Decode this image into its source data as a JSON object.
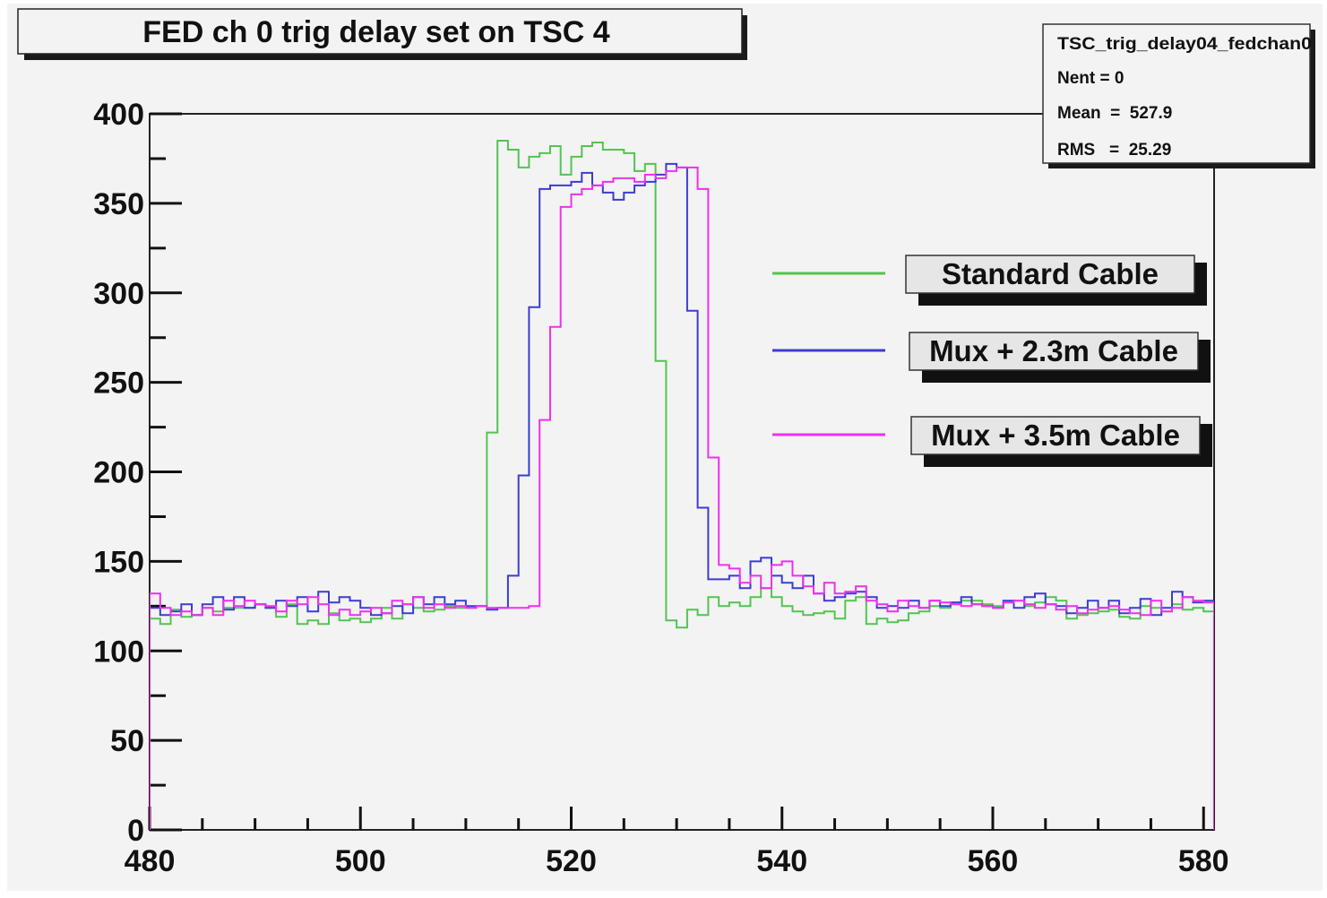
{
  "chart_data": {
    "type": "line",
    "title": "FED ch 0 trig delay set on TSC  4",
    "xlim": [
      480,
      581
    ],
    "ylim": [
      0,
      400
    ],
    "x_ticks": [
      480,
      500,
      520,
      540,
      560,
      580
    ],
    "y_ticks": [
      0,
      50,
      100,
      150,
      200,
      250,
      300,
      350,
      400
    ],
    "grid": false,
    "legend_position": "right",
    "bin_start": 480,
    "bin_width": 1,
    "stats": {
      "name": "TSC_trig_delay04_fedchan0",
      "entries": "Nent = 0",
      "mean": "Mean  =  527.9",
      "rms": "RMS   =  25.29"
    },
    "series": [
      {
        "name": "Standard Cable",
        "color": "#52c452",
        "values": [
          118,
          115,
          123,
          119,
          120,
          124,
          122,
          124,
          124,
          124,
          126,
          124,
          119,
          126,
          115,
          117,
          115,
          121,
          117,
          118,
          116,
          118,
          124,
          118,
          126,
          124,
          122,
          123,
          125,
          124,
          124,
          125,
          222,
          385,
          380,
          370,
          376,
          378,
          382,
          366,
          376,
          382,
          384,
          380,
          380,
          378,
          368,
          372,
          262,
          117,
          113,
          123,
          120,
          130,
          125,
          127,
          125,
          130,
          135,
          130,
          125,
          122,
          120,
          121,
          122,
          118,
          128,
          130,
          115,
          118,
          116,
          117,
          121,
          122,
          125,
          124,
          127,
          128,
          128,
          126,
          125,
          127,
          128,
          125,
          127,
          130,
          128,
          118,
          120,
          121,
          122,
          123,
          119,
          118,
          125,
          124,
          122,
          126,
          123,
          124,
          122
        ]
      },
      {
        "name": "Mux + 2.3m Cable",
        "color": "#3c3cd2",
        "values": [
          124,
          120,
          122,
          126,
          120,
          126,
          130,
          123,
          130,
          124,
          126,
          124,
          128,
          125,
          130,
          122,
          133,
          127,
          130,
          128,
          124,
          120,
          121,
          125,
          121,
          130,
          126,
          130,
          126,
          128,
          125,
          125,
          123,
          124,
          142,
          198,
          292,
          358,
          360,
          360,
          362,
          367,
          360,
          356,
          352,
          356,
          360,
          362,
          366,
          372,
          370,
          290,
          180,
          140,
          140,
          142,
          135,
          150,
          152,
          142,
          138,
          135,
          142,
          132,
          128,
          130,
          132,
          133,
          130,
          124,
          125,
          124,
          128,
          124,
          128,
          125,
          127,
          130,
          126,
          125,
          124,
          128,
          124,
          130,
          132,
          126,
          125,
          121,
          124,
          128,
          124,
          128,
          121,
          124,
          129,
          120,
          124,
          133,
          130,
          127,
          128
        ]
      },
      {
        "name": "Mux + 3.5m Cable",
        "color": "#ee30ee",
        "values": [
          132,
          124,
          120,
          122,
          120,
          124,
          120,
          128,
          125,
          128,
          126,
          125,
          122,
          128,
          126,
          130,
          126,
          120,
          123,
          120,
          122,
          124,
          121,
          128,
          126,
          130,
          124,
          126,
          124,
          125,
          124,
          125,
          124,
          124,
          124,
          124,
          125,
          229,
          281,
          348,
          355,
          358,
          360,
          362,
          364,
          364,
          362,
          366,
          364,
          368,
          370,
          370,
          358,
          208,
          148,
          146,
          138,
          142,
          135,
          148,
          150,
          142,
          136,
          132,
          138,
          132,
          133,
          136,
          128,
          126,
          122,
          128,
          125,
          124,
          128,
          127,
          126,
          125,
          126,
          125,
          124,
          127,
          128,
          126,
          124,
          126,
          123,
          125,
          121,
          123,
          124,
          125,
          123,
          121,
          120,
          128,
          122,
          124,
          130,
          128,
          127
        ]
      }
    ]
  }
}
